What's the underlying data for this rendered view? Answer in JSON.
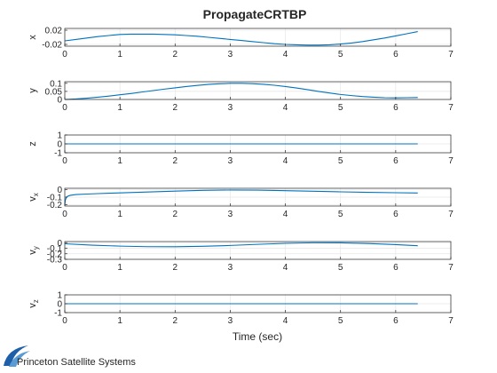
{
  "figure": {
    "title": "PropagateCRTBP",
    "xlabel": "Time (sec)",
    "logo_text": "Princeton Satellite Systems",
    "line_color": "#0072bd",
    "grid_color": "#e6e6e6"
  },
  "chart_data": [
    {
      "type": "line",
      "ylabel": "x",
      "ylabel_sub": "",
      "xlim": [
        0,
        7
      ],
      "ylim": [
        -0.025,
        0.025
      ],
      "xticks": [
        0,
        1,
        2,
        3,
        4,
        5,
        6,
        7
      ],
      "yticks": [
        0.02,
        -0.02
      ],
      "ytick_labels": [
        "0.02",
        "-0.02"
      ],
      "grid": true,
      "x": [
        0,
        0.2,
        0.4,
        0.6,
        0.8,
        1.0,
        1.2,
        1.4,
        1.6,
        1.8,
        2.0,
        2.2,
        2.4,
        2.6,
        2.8,
        3.0,
        3.2,
        3.4,
        3.6,
        3.8,
        4.0,
        4.2,
        4.4,
        4.6,
        4.8,
        5.0,
        5.2,
        5.4,
        5.6,
        5.8,
        6.0,
        6.2,
        6.4
      ],
      "y": [
        -0.01,
        -0.006,
        -0.002,
        0.002,
        0.005,
        0.008,
        0.009,
        0.009,
        0.009,
        0.008,
        0.007,
        0.005,
        0.003,
        0.0,
        -0.003,
        -0.006,
        -0.009,
        -0.012,
        -0.015,
        -0.018,
        -0.02,
        -0.021,
        -0.022,
        -0.022,
        -0.021,
        -0.019,
        -0.016,
        -0.012,
        -0.007,
        -0.002,
        0.004,
        0.01,
        0.016
      ]
    },
    {
      "type": "line",
      "ylabel": "y",
      "ylabel_sub": "",
      "xlim": [
        0,
        7
      ],
      "ylim": [
        0,
        0.11
      ],
      "xticks": [
        0,
        1,
        2,
        3,
        4,
        5,
        6,
        7
      ],
      "yticks": [
        0.1,
        0.05,
        0
      ],
      "ytick_labels": [
        "0.1",
        "0.05",
        "0"
      ],
      "grid": true,
      "x": [
        0,
        0.2,
        0.4,
        0.6,
        0.8,
        1.0,
        1.2,
        1.4,
        1.6,
        1.8,
        2.0,
        2.2,
        2.4,
        2.6,
        2.8,
        3.0,
        3.2,
        3.4,
        3.6,
        3.8,
        4.0,
        4.2,
        4.4,
        4.6,
        4.8,
        5.0,
        5.2,
        5.4,
        5.6,
        5.8,
        6.0,
        6.2,
        6.4
      ],
      "y": [
        0.0,
        0.003,
        0.008,
        0.014,
        0.021,
        0.029,
        0.037,
        0.046,
        0.055,
        0.064,
        0.072,
        0.08,
        0.087,
        0.093,
        0.097,
        0.1,
        0.1,
        0.098,
        0.094,
        0.088,
        0.08,
        0.071,
        0.061,
        0.05,
        0.04,
        0.031,
        0.024,
        0.018,
        0.014,
        0.011,
        0.01,
        0.011,
        0.012
      ]
    },
    {
      "type": "line",
      "ylabel": "z",
      "ylabel_sub": "",
      "xlim": [
        0,
        7
      ],
      "ylim": [
        -1,
        1
      ],
      "xticks": [
        0,
        1,
        2,
        3,
        4,
        5,
        6,
        7
      ],
      "yticks": [
        1,
        0,
        -1
      ],
      "ytick_labels": [
        "1",
        "0",
        "-1"
      ],
      "grid": true,
      "x": [
        0,
        6.4
      ],
      "y": [
        0,
        0
      ]
    },
    {
      "type": "line",
      "ylabel": "v",
      "ylabel_sub": "x",
      "xlim": [
        0,
        7
      ],
      "ylim": [
        -0.22,
        0.02
      ],
      "xticks": [
        0,
        1,
        2,
        3,
        4,
        5,
        6,
        7
      ],
      "yticks": [
        0,
        -0.1,
        -0.2
      ],
      "ytick_labels": [
        "0",
        "-0.1",
        "-0.2"
      ],
      "grid": true,
      "x": [
        0,
        0.01,
        0.03,
        0.06,
        0.1,
        0.2,
        0.4,
        0.6,
        0.8,
        1.0,
        1.5,
        2.0,
        2.5,
        3.0,
        3.5,
        4.0,
        4.5,
        5.0,
        5.5,
        6.0,
        6.4
      ],
      "y": [
        -0.2,
        -0.14,
        -0.1,
        -0.085,
        -0.075,
        -0.065,
        -0.058,
        -0.052,
        -0.047,
        -0.042,
        -0.03,
        -0.018,
        -0.008,
        -0.003,
        -0.005,
        -0.012,
        -0.02,
        -0.028,
        -0.035,
        -0.04,
        -0.044
      ]
    },
    {
      "type": "line",
      "ylabel": "v",
      "ylabel_sub": "y",
      "xlim": [
        0,
        7
      ],
      "ylim": [
        -0.3,
        0.02
      ],
      "xticks": [
        0,
        1,
        2,
        3,
        4,
        5,
        6,
        7
      ],
      "yticks": [
        0,
        -0.1,
        -0.2,
        -0.3
      ],
      "ytick_labels": [
        "0",
        "-0.1",
        "-0.2",
        "-0.3"
      ],
      "grid": true,
      "x": [
        0,
        0.5,
        1.0,
        1.5,
        2.0,
        2.5,
        3.0,
        3.5,
        4.0,
        4.5,
        5.0,
        5.5,
        6.0,
        6.4
      ],
      "y": [
        -0.02,
        -0.045,
        -0.062,
        -0.072,
        -0.073,
        -0.065,
        -0.05,
        -0.03,
        -0.012,
        -0.002,
        -0.003,
        -0.015,
        -0.035,
        -0.055
      ]
    },
    {
      "type": "line",
      "ylabel": "v",
      "ylabel_sub": "z",
      "xlim": [
        0,
        7
      ],
      "ylim": [
        -1,
        1
      ],
      "xticks": [
        0,
        1,
        2,
        3,
        4,
        5,
        6,
        7
      ],
      "yticks": [
        1,
        0,
        -1
      ],
      "ytick_labels": [
        "1",
        "0",
        "-1"
      ],
      "grid": true,
      "x": [
        0,
        6.4
      ],
      "y": [
        0,
        0
      ]
    }
  ]
}
